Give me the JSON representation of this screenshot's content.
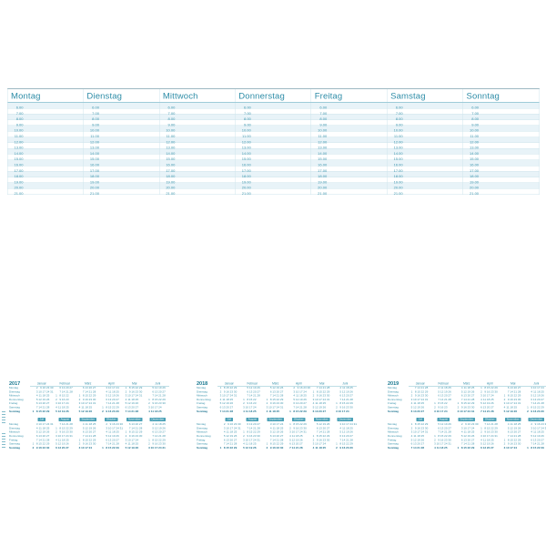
{
  "planner": {
    "day_headers": [
      "Montag",
      "Dienstag",
      "Mittwoch",
      "Donnerstag",
      "Freitag",
      "Samstag",
      "Sonntag"
    ],
    "time_slots": [
      "6.00",
      "7.00",
      "8.00",
      "9.00",
      "10.00",
      "11.00",
      "12.00",
      "13.00",
      "14.00",
      "15.00",
      "16.00",
      "17.00",
      "18.00",
      "19.00",
      "20.00",
      "21.00"
    ]
  },
  "year_overview": {
    "years": [
      "2017",
      "2018",
      "2019"
    ],
    "weekday_labels": [
      "Montag",
      "Dienstag",
      "Mittwoch",
      "Donnerstag",
      "Freitag",
      "Samstag",
      "Sonntag"
    ],
    "months_first_half": [
      "Januar",
      "Februar",
      "März",
      "April",
      "Mai",
      "Juni"
    ],
    "months_second_half": [
      "Juli",
      "August",
      "September",
      "Oktober",
      "November",
      "Dezember"
    ]
  },
  "colors": {
    "accent_teal": "#2d8ca7",
    "time_text": "#3d95ad",
    "row_stripe": "#e8f3f8",
    "grid_line": "#cfe5ec",
    "sunday_text": "#19708d",
    "month_box_fill": "#4ba1b7",
    "month_box_text": "#ffffff"
  }
}
